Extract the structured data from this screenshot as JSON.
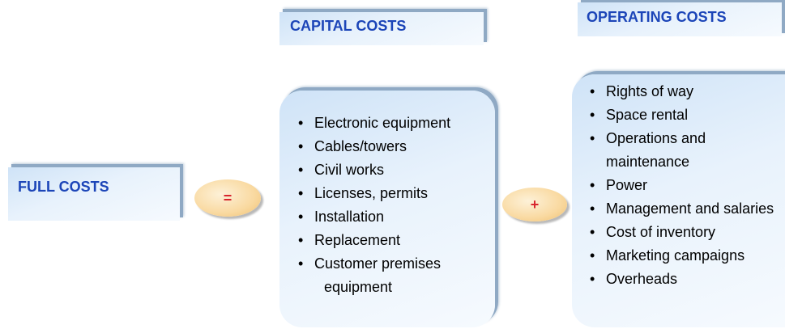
{
  "full_costs": "FULL COSTS",
  "equals": "=",
  "plus": "+",
  "capital": {
    "title": "CAPITAL COSTS",
    "items": [
      "Electronic equipment",
      "Cables/towers",
      "Civil works",
      "Licenses, permits",
      "Installation",
      "Replacement",
      "Customer premises equipment"
    ]
  },
  "operating": {
    "title": "OPERATING COSTS",
    "items": [
      "Rights of way",
      "Space rental",
      "Operations and maintenance",
      "Power",
      "Management and salaries",
      "Cost of inventory",
      "Marketing campaigns",
      "Overheads"
    ]
  }
}
